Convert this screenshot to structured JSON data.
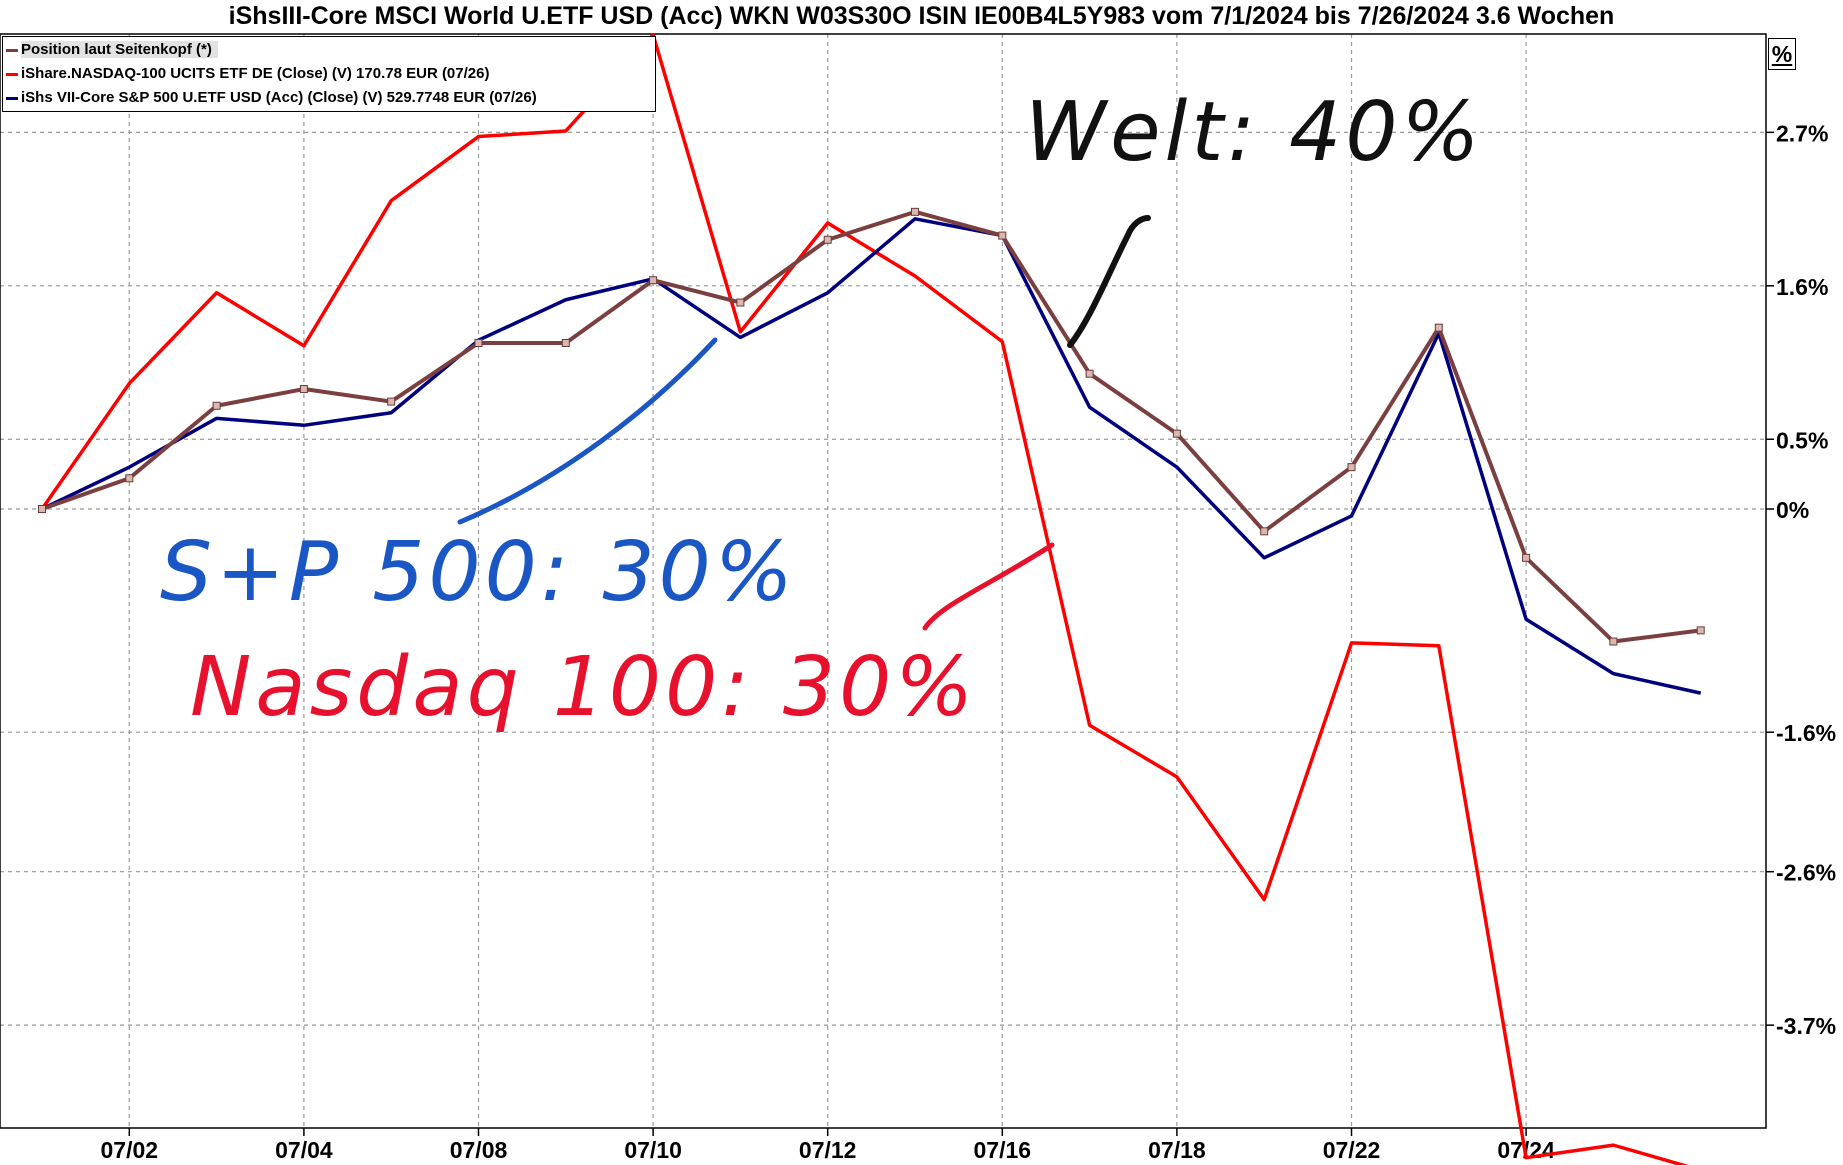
{
  "chart_data": {
    "type": "line",
    "title": "iShsIII-Core MSCI World U.ETF USD (Acc) WKN W03S30O ISIN IE00B4L5Y983 vom 7/1/2024 bis 7/26/2024 3.6 Wochen",
    "unit_label": "%",
    "x": [
      "07/01",
      "07/02",
      "07/03",
      "07/04",
      "07/05",
      "07/08",
      "07/09",
      "07/10",
      "07/11",
      "07/12",
      "07/15",
      "07/16",
      "07/17",
      "07/18",
      "07/19",
      "07/22",
      "07/23",
      "07/24",
      "07/25",
      "07/26"
    ],
    "x_tick_labels": [
      "07/02",
      "07/04",
      "07/08",
      "07/10",
      "07/12",
      "07/16",
      "07/18",
      "07/22",
      "07/24"
    ],
    "y_tick_labels": [
      "2.7%",
      "1.6%",
      "0.5%",
      "0%",
      "-1.6%",
      "-2.6%",
      "-3.7%"
    ],
    "y_tick_values": [
      2.7,
      1.6,
      0.5,
      0,
      -1.6,
      -2.6,
      -3.7
    ],
    "ylim": [
      -4.7,
      3.5
    ],
    "grid": true,
    "legend_position": "top-left",
    "series": [
      {
        "name": "Position laut Seitenkopf (*)",
        "color": "#7b3f3f",
        "markers": true,
        "values": [
          0.0,
          0.22,
          0.74,
          0.86,
          0.77,
          1.19,
          1.19,
          1.64,
          1.48,
          1.93,
          2.13,
          1.96,
          0.97,
          0.54,
          -0.16,
          0.3,
          1.3,
          -0.35,
          -0.95,
          -0.87
        ]
      },
      {
        "name": "iShare.NASDAQ-100 UCITS ETF DE (Close) (V) 170.78 EUR (07/26)",
        "color": "#ff0000",
        "markers": false,
        "values": [
          0.0,
          0.9,
          1.55,
          1.17,
          2.21,
          2.67,
          2.71,
          3.4,
          1.27,
          2.05,
          1.67,
          1.2,
          -1.55,
          -1.92,
          -2.8,
          -0.96,
          -0.98,
          -4.65,
          -4.56,
          -4.74
        ]
      },
      {
        "name": "iShs VII-Core S&P 500 U.ETF USD (Acc) (Close) (V) 529.7748 EUR (07/26)",
        "color": "#00007f",
        "markers": false,
        "values": [
          0.0,
          0.3,
          0.65,
          0.6,
          0.69,
          1.21,
          1.5,
          1.65,
          1.23,
          1.55,
          2.08,
          1.96,
          0.73,
          0.3,
          -0.35,
          -0.05,
          1.26,
          -0.79,
          -1.18,
          -1.32
        ]
      }
    ],
    "annotations": [
      {
        "text": "Welt: 40%",
        "color": "#111111"
      },
      {
        "text": "S+P 500: 30%",
        "color": "#1a56c4"
      },
      {
        "text": "Nasdaq 100: 30%",
        "color": "#e8112d"
      }
    ]
  }
}
